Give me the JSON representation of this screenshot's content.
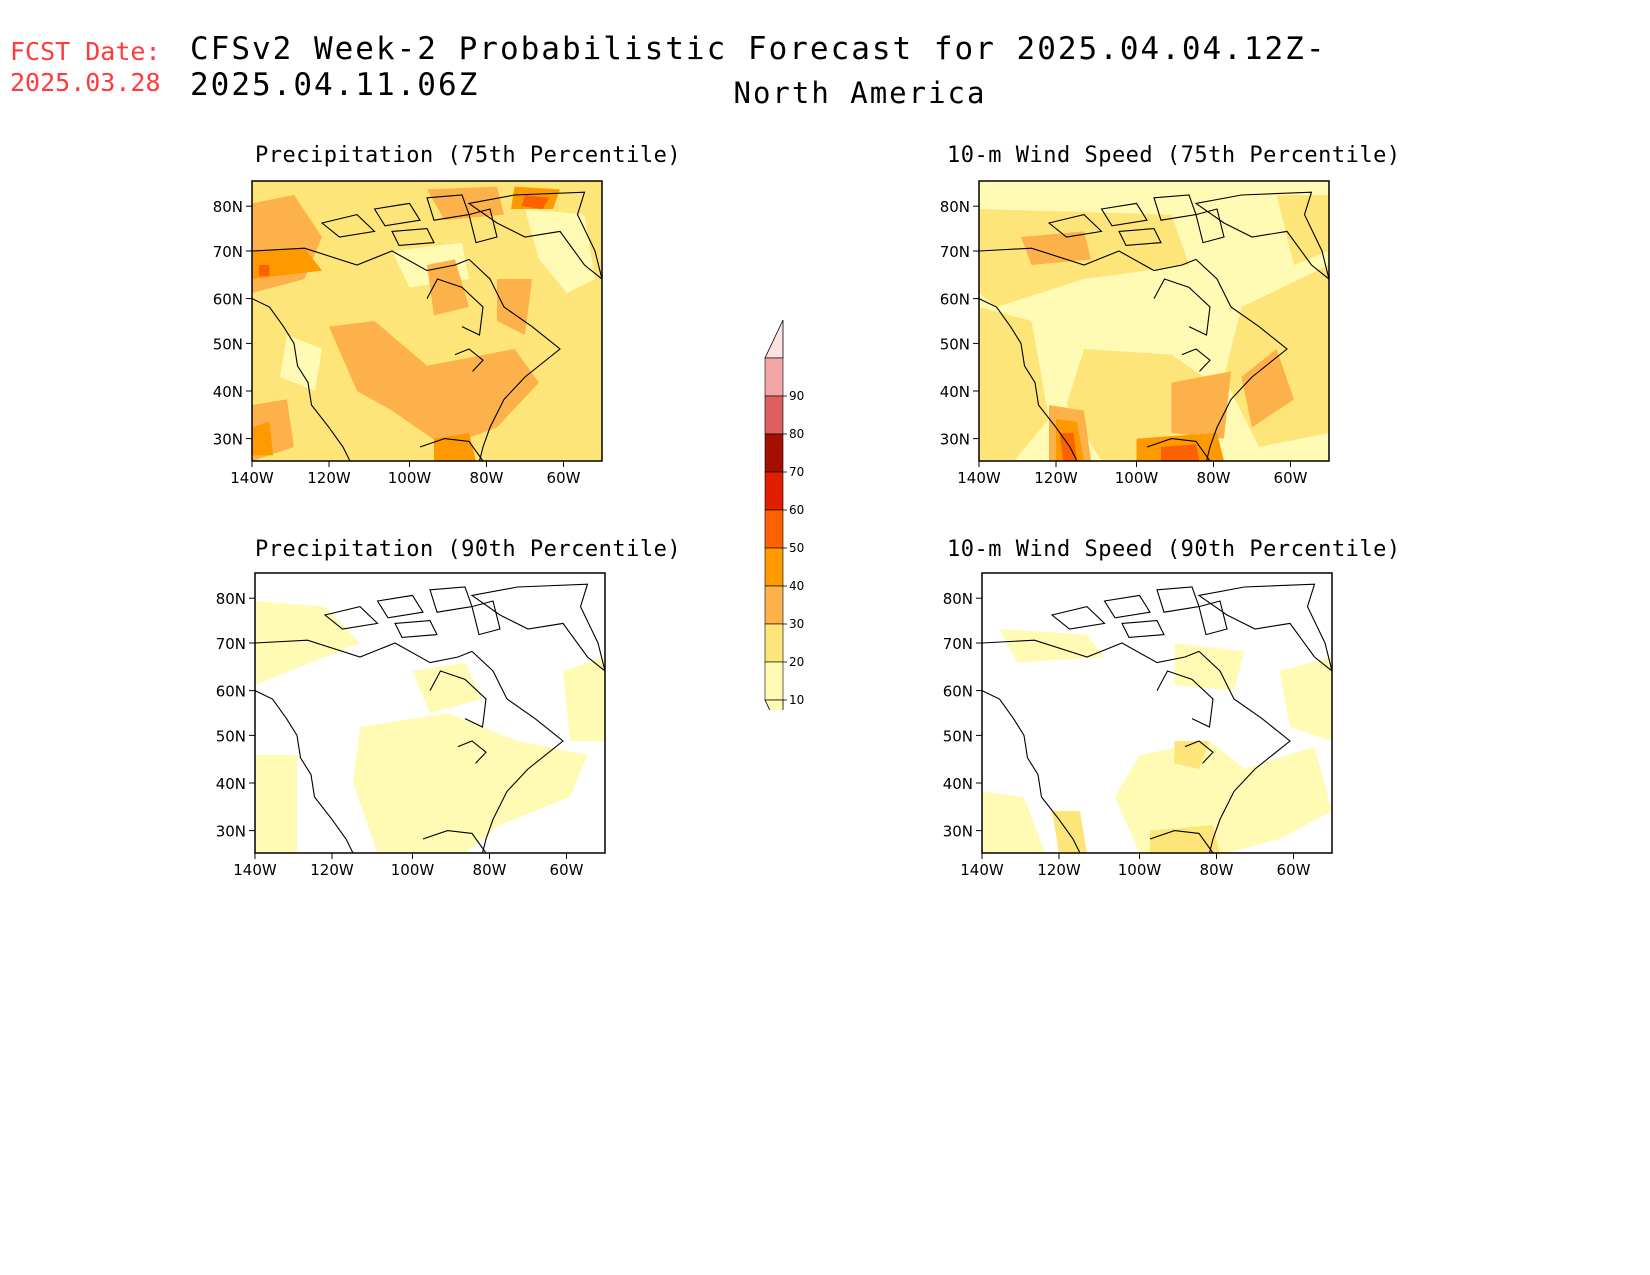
{
  "header": {
    "fcst_label": "FCST Date:",
    "fcst_date": "2025.03.28",
    "title": "CFSv2 Week-2 Probabilistic Forecast for 2025.04.04.12Z-2025.04.11.06Z",
    "subtitle": "North America"
  },
  "panels": [
    {
      "title": "Precipitation (75th Percentile)"
    },
    {
      "title": "10-m Wind Speed (75th Percentile)"
    },
    {
      "title": "Precipitation (90th Percentile)"
    },
    {
      "title": "10-m Wind Speed (90th Percentile)"
    }
  ],
  "axes": {
    "lat_labels": [
      "80N",
      "70N",
      "60N",
      "50N",
      "40N",
      "30N"
    ],
    "lon_labels": [
      "140W",
      "120W",
      "100W",
      "80W",
      "60W"
    ]
  },
  "colorbar": {
    "levels": [
      "10",
      "20",
      "30",
      "40",
      "50",
      "60",
      "70",
      "80",
      "90"
    ],
    "colors": [
      "#fffbb4",
      "#fee57a",
      "#fdb14a",
      "#fe9a00",
      "#fd6100",
      "#e21e00",
      "#a50f00",
      "#dd5f5f",
      "#f4a5a5",
      "#fde2e2"
    ]
  }
}
